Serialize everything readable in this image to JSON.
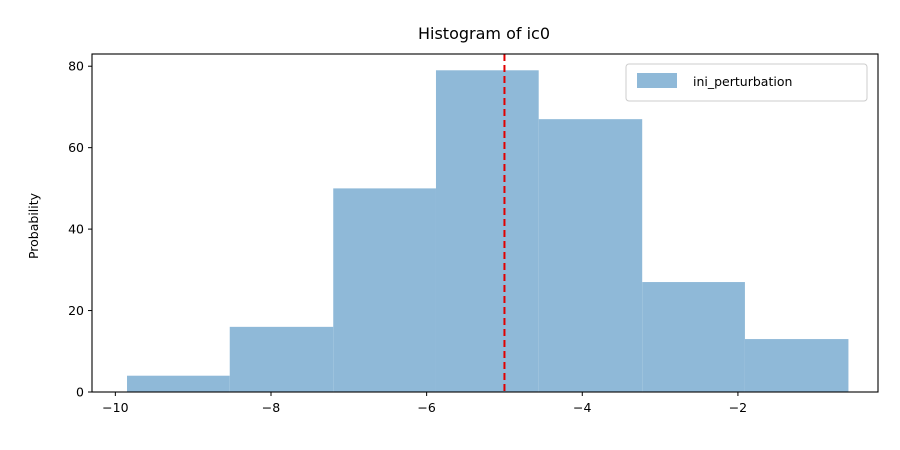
{
  "chart_data": {
    "type": "bar",
    "title": "Histogram of ic0",
    "xlabel": "",
    "ylabel": "Probability",
    "xlim": [
      -10.3,
      -0.2
    ],
    "ylim": [
      0,
      83
    ],
    "xticks": [
      -10,
      -8,
      -6,
      -4,
      -2
    ],
    "xtick_labels": [
      "−10",
      "−8",
      "−6",
      "−4",
      "−2"
    ],
    "yticks": [
      0,
      20,
      40,
      60,
      80
    ],
    "ytick_labels": [
      "0",
      "20",
      "40",
      "60",
      "80"
    ],
    "bin_edges": [
      -9.85,
      -8.53,
      -7.2,
      -5.88,
      -4.56,
      -3.23,
      -1.91,
      -0.58
    ],
    "series": [
      {
        "name": "ini_perturbation",
        "values": [
          4,
          16,
          50,
          79,
          67,
          27,
          13
        ],
        "color": "#8fb9d8"
      }
    ],
    "reference_line": {
      "x": -5.0,
      "color": "#e00000",
      "style": "dashed"
    },
    "legend": {
      "position": "top-right"
    },
    "grid": false
  }
}
